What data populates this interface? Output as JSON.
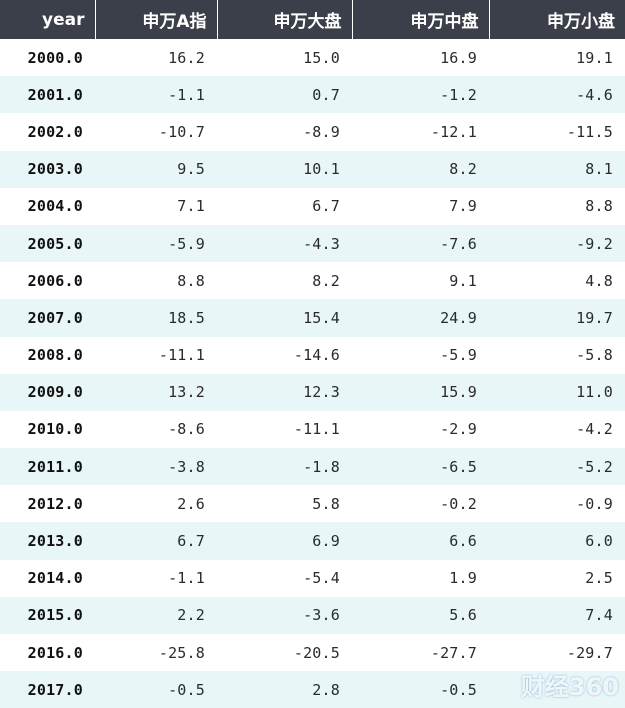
{
  "table": {
    "headers": [
      "year",
      "申万A指",
      "申万大盘",
      "申万中盘",
      "申万小盘"
    ],
    "rows": [
      [
        "2000.0",
        "16.2",
        "15.0",
        "16.9",
        "19.1"
      ],
      [
        "2001.0",
        "-1.1",
        "0.7",
        "-1.2",
        "-4.6"
      ],
      [
        "2002.0",
        "-10.7",
        "-8.9",
        "-12.1",
        "-11.5"
      ],
      [
        "2003.0",
        "9.5",
        "10.1",
        "8.2",
        "8.1"
      ],
      [
        "2004.0",
        "7.1",
        "6.7",
        "7.9",
        "8.8"
      ],
      [
        "2005.0",
        "-5.9",
        "-4.3",
        "-7.6",
        "-9.2"
      ],
      [
        "2006.0",
        "8.8",
        "8.2",
        "9.1",
        "4.8"
      ],
      [
        "2007.0",
        "18.5",
        "15.4",
        "24.9",
        "19.7"
      ],
      [
        "2008.0",
        "-11.1",
        "-14.6",
        "-5.9",
        "-5.8"
      ],
      [
        "2009.0",
        "13.2",
        "12.3",
        "15.9",
        "11.0"
      ],
      [
        "2010.0",
        "-8.6",
        "-11.1",
        "-2.9",
        "-4.2"
      ],
      [
        "2011.0",
        "-3.8",
        "-1.8",
        "-6.5",
        "-5.2"
      ],
      [
        "2012.0",
        "2.6",
        "5.8",
        "-0.2",
        "-0.9"
      ],
      [
        "2013.0",
        "6.7",
        "6.9",
        "6.6",
        "6.0"
      ],
      [
        "2014.0",
        "-1.1",
        "-5.4",
        "1.9",
        "2.5"
      ],
      [
        "2015.0",
        "2.2",
        "-3.6",
        "5.6",
        "7.4"
      ],
      [
        "2016.0",
        "-25.8",
        "-20.5",
        "-27.7",
        "-29.7"
      ],
      [
        "2017.0",
        "-0.5",
        "2.8",
        "-0.5",
        ""
      ]
    ]
  },
  "watermark": "财经360"
}
